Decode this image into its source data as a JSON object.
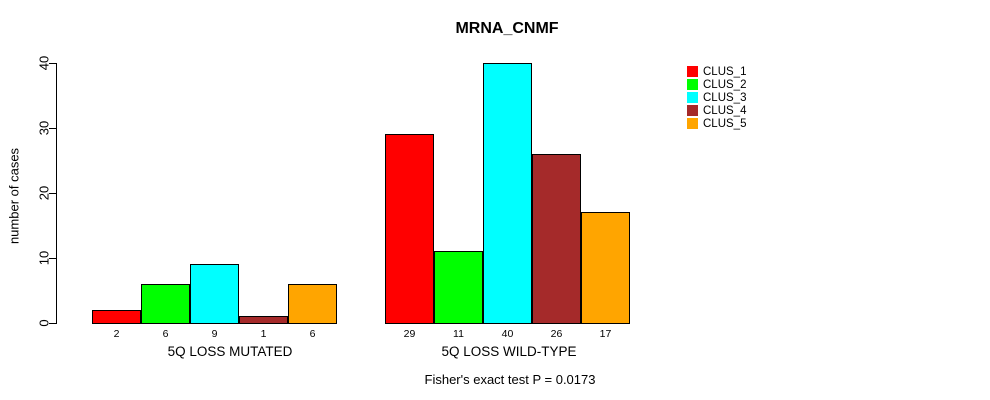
{
  "chart_data": {
    "type": "bar",
    "title": "MRNA_CNMF",
    "ylabel": "number of cases",
    "xlabel": "",
    "ylim": [
      0,
      40
    ],
    "yticks": [
      0,
      10,
      20,
      30,
      40
    ],
    "categories": [
      "5Q LOSS MUTATED",
      "5Q LOSS WILD-TYPE"
    ],
    "series": [
      {
        "name": "CLUS_1",
        "color": "#ff0000",
        "values": [
          2,
          29
        ]
      },
      {
        "name": "CLUS_2",
        "color": "#00ff00",
        "values": [
          6,
          11
        ]
      },
      {
        "name": "CLUS_3",
        "color": "#00ffff",
        "values": [
          9,
          40
        ]
      },
      {
        "name": "CLUS_4",
        "color": "#a52a2a",
        "values": [
          1,
          26
        ]
      },
      {
        "name": "CLUS_5",
        "color": "#ffa500",
        "values": [
          6,
          17
        ]
      }
    ],
    "legend": {
      "position": "right",
      "entries": [
        "CLUS_1",
        "CLUS_2",
        "CLUS_3",
        "CLUS_4",
        "CLUS_5"
      ]
    },
    "bar_value_labels_shown": true,
    "annotation": "Fisher's exact test P = 0.0173",
    "grid": false,
    "axis_color": "#000000",
    "background_color": "#ffffff"
  }
}
